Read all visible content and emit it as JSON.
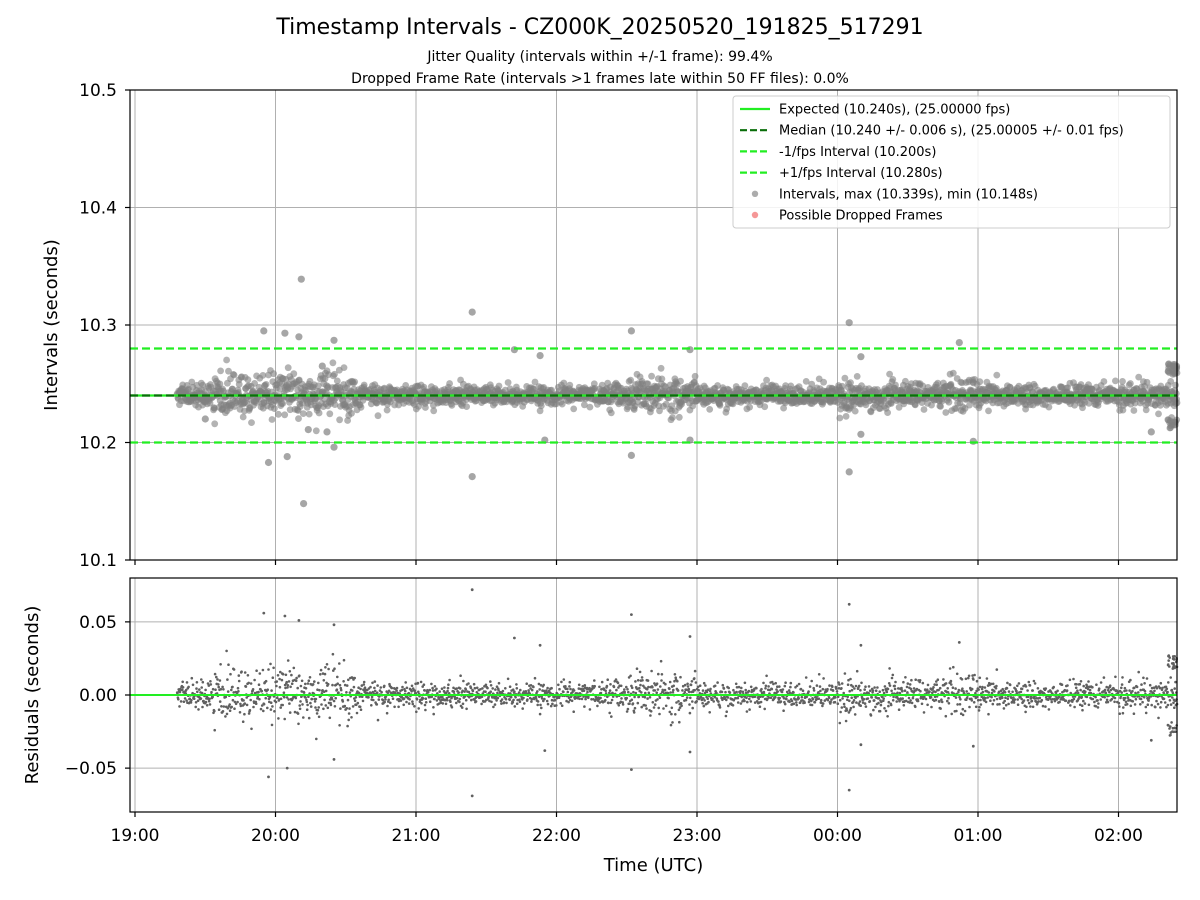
{
  "figure": {
    "title": "Timestamp Intervals - CZ000K_20250520_191825_517291",
    "subtitle_1": "Jitter Quality (intervals within +/-1 frame): 99.4%",
    "subtitle_2": "Dropped Frame Rate (intervals >1 frames late within 50 FF files): 0.0%",
    "colors": {
      "expected": "#22ee22",
      "median": "#0a6e0a",
      "bounds": "#22ee22",
      "points": "#808080",
      "dropped": "#f06060",
      "grid": "#b0b0b0"
    }
  },
  "chart_data": [
    {
      "type": "scatter",
      "panel": "intervals",
      "ylabel": "Intervals (seconds)",
      "xlabel": "",
      "ylim": [
        10.1,
        10.5
      ],
      "yticks": [
        10.1,
        10.2,
        10.3,
        10.4,
        10.5
      ],
      "ytick_labels": [
        "10.1",
        "10.2",
        "10.3",
        "10.4",
        "10.5"
      ],
      "grid": true,
      "legend_placement": "top-right",
      "hlines": [
        {
          "name": "Expected (10.240s), (25.00000 fps)",
          "y": 10.24,
          "style": "solid",
          "color": "#22ee22"
        },
        {
          "name": "Median (10.240 +/- 0.006 s), (25.00005 +/- 0.01 fps)",
          "y": 10.24,
          "style": "dashed",
          "color": "#0a6e0a"
        },
        {
          "name": "-1/fps Interval (10.200s)",
          "y": 10.2,
          "style": "dashed",
          "color": "#22ee22"
        },
        {
          "name": "+1/fps Interval (10.280s)",
          "y": 10.28,
          "style": "dashed",
          "color": "#22ee22"
        }
      ],
      "series": [
        {
          "name": "Intervals, max (10.339s), min (10.148s)",
          "marker": "circle",
          "color": "#808080",
          "baseline": 10.24,
          "count": 2530,
          "max": 10.339,
          "min": 10.148
        },
        {
          "name": "Possible Dropped Frames",
          "marker": "circle",
          "color": "#f06060",
          "values": []
        }
      ],
      "outliers": [
        {
          "x": "19:30",
          "y": 10.22
        },
        {
          "x": "19:55",
          "y": 10.295
        },
        {
          "x": "19:57",
          "y": 10.183
        },
        {
          "x": "20:04",
          "y": 10.293
        },
        {
          "x": "20:05",
          "y": 10.188
        },
        {
          "x": "20:10",
          "y": 10.29
        },
        {
          "x": "20:12",
          "y": 10.148
        },
        {
          "x": "20:11",
          "y": 10.339
        },
        {
          "x": "20:14",
          "y": 10.211
        },
        {
          "x": "20:20",
          "y": 10.265
        },
        {
          "x": "20:22",
          "y": 10.209
        },
        {
          "x": "20:25",
          "y": 10.287
        },
        {
          "x": "20:25",
          "y": 10.196
        },
        {
          "x": "21:24",
          "y": 10.311
        },
        {
          "x": "21:24",
          "y": 10.171
        },
        {
          "x": "21:42",
          "y": 10.279
        },
        {
          "x": "21:53",
          "y": 10.274
        },
        {
          "x": "21:55",
          "y": 10.202
        },
        {
          "x": "22:32",
          "y": 10.295
        },
        {
          "x": "22:32",
          "y": 10.189
        },
        {
          "x": "22:57",
          "y": 10.279
        },
        {
          "x": "22:57",
          "y": 10.202
        },
        {
          "x": "00:05",
          "y": 10.302
        },
        {
          "x": "00:05",
          "y": 10.175
        },
        {
          "x": "00:10",
          "y": 10.273
        },
        {
          "x": "00:10",
          "y": 10.207
        },
        {
          "x": "00:52",
          "y": 10.285
        },
        {
          "x": "00:58",
          "y": 10.201
        },
        {
          "x": "02:14",
          "y": 10.209
        }
      ]
    },
    {
      "type": "scatter",
      "panel": "residuals",
      "ylabel": "Residuals (seconds)",
      "xlabel": "Time (UTC)",
      "ylim": [
        -0.08,
        0.08
      ],
      "yticks": [
        -0.05,
        0.0,
        0.05
      ],
      "ytick_labels": [
        "−0.05",
        "0.00",
        "0.05"
      ],
      "x_start": "19:00",
      "x_end": "02:25",
      "xticks": [
        "19:00",
        "20:00",
        "21:00",
        "22:00",
        "23:00",
        "00:00",
        "01:00",
        "02:00"
      ],
      "data_start": "19:18",
      "data_end": "02:25",
      "grid": true,
      "hline": {
        "y": 0.0,
        "color": "#22ee22"
      },
      "series": [
        {
          "name": "Residuals",
          "color": "#606060",
          "count": 2530,
          "max": 0.072,
          "min": -0.069
        }
      ],
      "outliers": [
        {
          "x": "19:55",
          "y": 0.056
        },
        {
          "x": "19:57",
          "y": -0.056
        },
        {
          "x": "20:04",
          "y": 0.054
        },
        {
          "x": "20:05",
          "y": -0.05
        },
        {
          "x": "20:10",
          "y": 0.051
        },
        {
          "x": "20:25",
          "y": 0.048
        },
        {
          "x": "20:25",
          "y": -0.044
        },
        {
          "x": "21:24",
          "y": 0.072
        },
        {
          "x": "21:24",
          "y": -0.069
        },
        {
          "x": "21:42",
          "y": 0.039
        },
        {
          "x": "21:53",
          "y": 0.034
        },
        {
          "x": "21:55",
          "y": -0.038
        },
        {
          "x": "22:32",
          "y": 0.055
        },
        {
          "x": "22:32",
          "y": -0.051
        },
        {
          "x": "22:57",
          "y": 0.04
        },
        {
          "x": "22:57",
          "y": -0.039
        },
        {
          "x": "00:05",
          "y": 0.062
        },
        {
          "x": "00:05",
          "y": -0.065
        },
        {
          "x": "00:10",
          "y": 0.034
        },
        {
          "x": "00:10",
          "y": -0.034
        },
        {
          "x": "00:52",
          "y": 0.036
        },
        {
          "x": "00:58",
          "y": -0.035
        },
        {
          "x": "02:14",
          "y": -0.031
        }
      ]
    }
  ]
}
